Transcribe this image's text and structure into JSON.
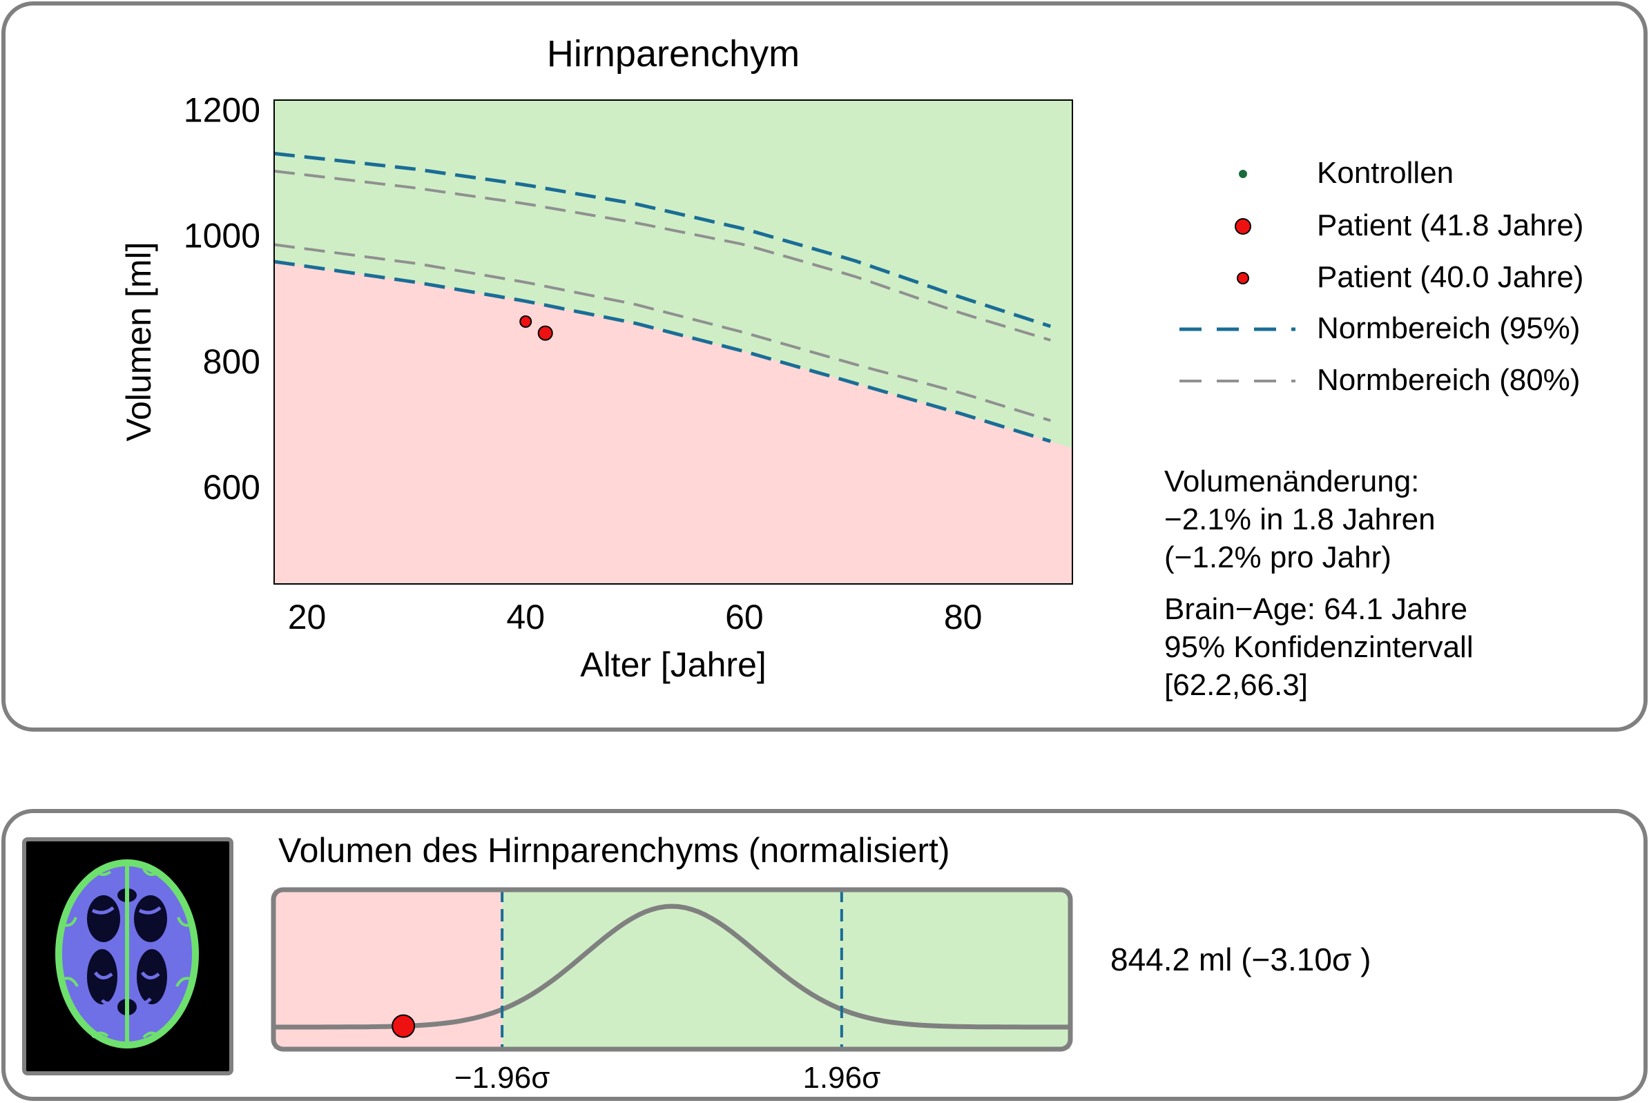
{
  "top_panel": {
    "chart_data": {
      "type": "scatter",
      "title": "Hirnparenchym",
      "xlabel": "Alter [Jahre]",
      "ylabel": "Volumen [ml]",
      "xlim": [
        17,
        90
      ],
      "ylim": [
        445,
        1215
      ],
      "x_ticks": [
        20,
        40,
        60,
        80
      ],
      "y_ticks": [
        600,
        800,
        1000,
        1200
      ],
      "grid": false,
      "legend_position": "right",
      "regions": [
        {
          "name": "below normal range",
          "color": "#ffd7d7"
        },
        {
          "name": "normal range",
          "color": "#cfeec6"
        }
      ],
      "series": [
        {
          "name": "Patient (41.8 Jahre)",
          "color": "#ee1111",
          "x": [
            41.8
          ],
          "y": [
            844.2
          ]
        },
        {
          "name": "Patient (40.0 Jahre)",
          "color": "#ee1111",
          "x": [
            40.0
          ],
          "y": [
            862.5
          ]
        },
        {
          "name": "Normbereich (95%)",
          "color": "#1a6d96",
          "style": "dashed",
          "x": [
            17,
            30,
            40,
            50,
            60,
            70,
            80,
            88
          ],
          "upper": [
            1130,
            1105,
            1080,
            1050,
            1010,
            960,
            900,
            855
          ],
          "lower": [
            958,
            925,
            895,
            860,
            815,
            765,
            715,
            672
          ]
        },
        {
          "name": "Normbereich (80%)",
          "color": "#909090",
          "style": "dashed",
          "x": [
            17,
            30,
            40,
            50,
            60,
            70,
            80,
            88
          ],
          "upper": [
            1102,
            1075,
            1050,
            1020,
            985,
            935,
            875,
            833
          ],
          "lower": [
            985,
            955,
            925,
            890,
            845,
            795,
            748,
            705
          ]
        }
      ]
    },
    "legend": [
      {
        "label": "Kontrollen",
        "marker": "dot-small",
        "color": "#1a6b3c"
      },
      {
        "label": "Patient (41.8 Jahre)",
        "marker": "dot-large",
        "color": "#ee1111"
      },
      {
        "label": "Patient (40.0 Jahre)",
        "marker": "dot-medium",
        "color": "#ee1111"
      },
      {
        "label": "Normbereich (95%)",
        "marker": "dash",
        "color": "#1a6d96"
      },
      {
        "label": "Normbereich (80%)",
        "marker": "dash",
        "color": "#909090"
      }
    ],
    "info_lines": [
      "Volumenänderung:",
      "−2.1% in 1.8 Jahren",
      "(−1.2% pro Jahr)",
      "Brain−Age: 64.1 Jahre",
      "95% Konfidenzintervall",
      "[62.2,66.3]"
    ]
  },
  "bottom_panel": {
    "chart_data": {
      "type": "area",
      "title": "Volumen des Hirnparenchyms (normalisiert)",
      "xlim": [
        -4.6,
        4.6
      ],
      "x_ticks": [
        -1.96,
        1.96
      ],
      "x_tick_labels": [
        "−1.96σ",
        "1.96σ"
      ],
      "curve": "normal density",
      "patient_z": -3.1,
      "regions": [
        {
          "from": -4.6,
          "to": -1.96,
          "color": "#ffd7d7"
        },
        {
          "from": -1.96,
          "to": 4.6,
          "color": "#cfeec6"
        }
      ],
      "threshold_color": "#1a6d96",
      "curve_color": "#808080",
      "marker_color": "#ee1111"
    },
    "value_text": "844.2 ml (−3.10σ )",
    "brain_image": {
      "icon": "brain-segmentation-icon",
      "colors": [
        "#000000",
        "#6f6fe6",
        "#6ee06e"
      ]
    }
  }
}
